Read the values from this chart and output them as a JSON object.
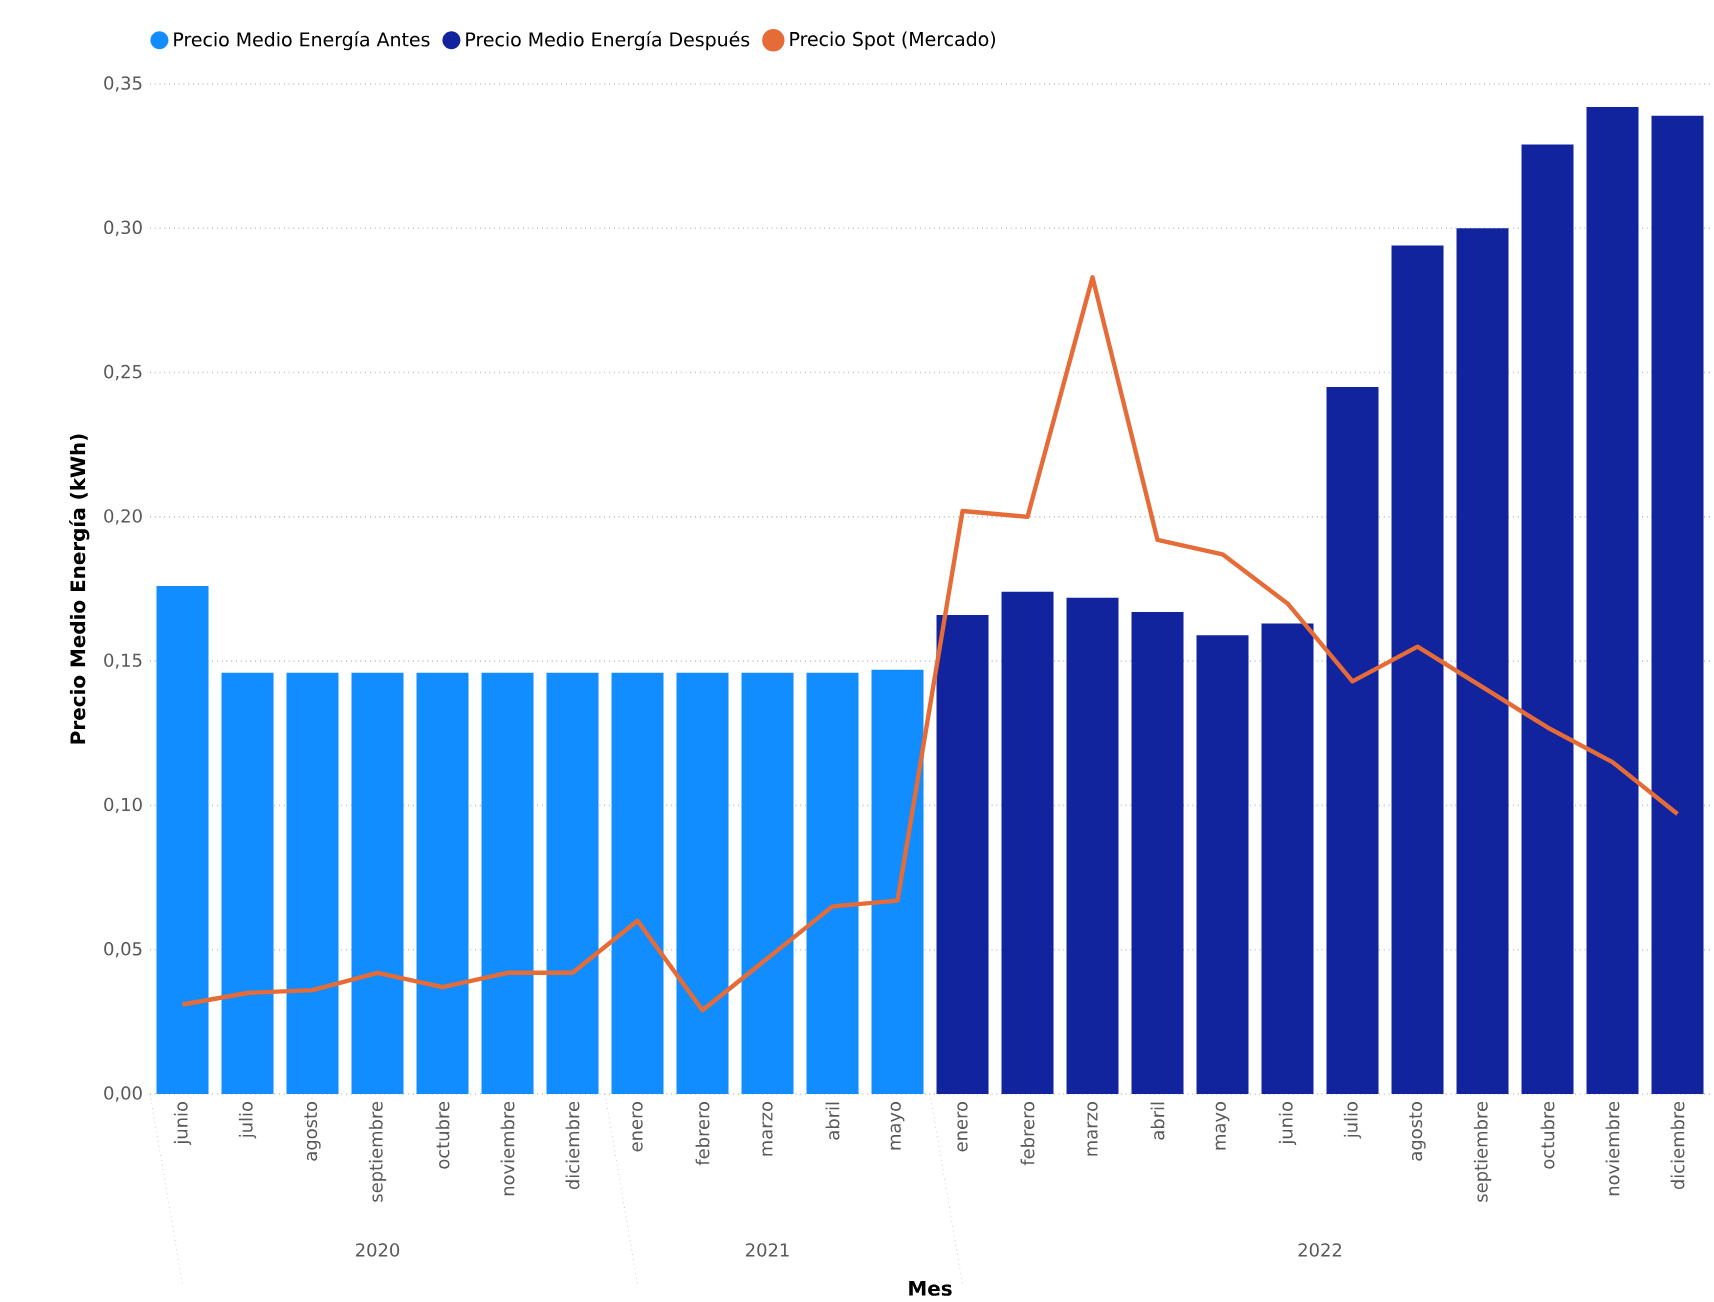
{
  "chart_data": {
    "type": "bar",
    "xlabel": "Mes",
    "ylabel": "Precio Medio Energía (kWh)",
    "categories": [
      "junio",
      "julio",
      "agosto",
      "septiembre",
      "octubre",
      "noviembre",
      "diciembre",
      "enero",
      "febrero",
      "marzo",
      "abril",
      "mayo",
      "enero",
      "febrero",
      "marzo",
      "abril",
      "mayo",
      "junio",
      "julio",
      "agosto",
      "septiembre",
      "octubre",
      "noviembre",
      "diciembre"
    ],
    "series": [
      {
        "name": "Precio Medio Energía Antes",
        "color": "#118dff",
        "values": [
          0.176,
          0.146,
          0.146,
          0.146,
          0.146,
          0.146,
          0.146,
          0.146,
          0.146,
          0.146,
          0.146,
          0.147,
          null,
          null,
          null,
          null,
          null,
          null,
          null,
          null,
          null,
          null,
          null,
          null
        ]
      },
      {
        "name": "Precio Medio Energía Después",
        "color": "#12239e",
        "values": [
          null,
          null,
          null,
          null,
          null,
          null,
          null,
          null,
          null,
          null,
          null,
          null,
          0.166,
          0.174,
          0.172,
          0.167,
          0.159,
          0.163,
          0.245,
          0.294,
          0.3,
          0.329,
          0.342,
          0.339
        ]
      },
      {
        "name": "Precio Spot (Mercado)",
        "type": "line",
        "color": "#e66c37",
        "values": [
          0.031,
          0.035,
          0.036,
          0.042,
          0.037,
          0.042,
          0.042,
          0.06,
          0.029,
          0.047,
          0.065,
          0.067,
          0.202,
          0.2,
          0.283,
          0.192,
          0.187,
          0.17,
          0.143,
          0.155,
          0.141,
          0.127,
          0.115,
          0.097
        ]
      }
    ],
    "ylim": [
      0,
      0.35
    ],
    "yticks": [
      {
        "value": 0,
        "label": "0,00"
      },
      {
        "value": 0.05,
        "label": "0,05"
      },
      {
        "value": 0.1,
        "label": "0,10"
      },
      {
        "value": 0.15,
        "label": "0,15"
      },
      {
        "value": 0.2,
        "label": "0,20"
      },
      {
        "value": 0.25,
        "label": "0,25"
      },
      {
        "value": 0.3,
        "label": "0,30"
      },
      {
        "value": 0.35,
        "label": "0,35"
      }
    ],
    "grid": "y",
    "legend": "top left",
    "line_style": "solid",
    "marker": "none",
    "annotations": [
      "2020",
      "2021",
      "2022"
    ]
  }
}
